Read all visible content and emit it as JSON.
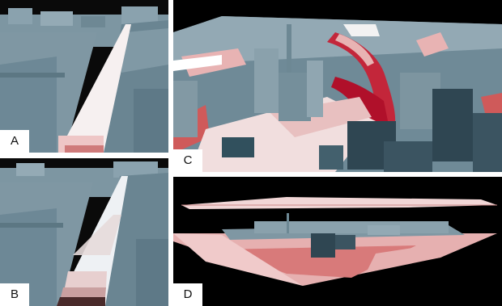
{
  "figure": {
    "panels": [
      {
        "id": "A",
        "label": "A"
      },
      {
        "id": "B",
        "label": "B"
      },
      {
        "id": "C",
        "label": "C"
      },
      {
        "id": "D",
        "label": "D"
      }
    ]
  },
  "colors": {
    "background": "#000000",
    "building_light": "#8fa6b1",
    "building_mid": "#6c8794",
    "building_dark": "#2f4652",
    "street_light": "#f4e7e7",
    "street_pink": "#e8b3b3",
    "street_red": "#cf5a5a",
    "street_deep": "#b0102a"
  }
}
